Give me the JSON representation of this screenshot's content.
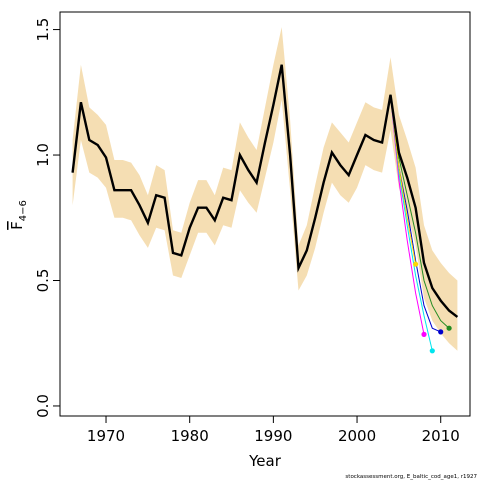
{
  "chart_data": {
    "type": "line",
    "xlabel": "Year",
    "ylabel": "F",
    "ylabel_sub": "4−6",
    "xlim": [
      1964.5,
      2013.5
    ],
    "ylim": [
      -0.04,
      1.57
    ],
    "x_ticks": [
      1970,
      1980,
      1990,
      2000,
      2010
    ],
    "x_tick_labels": [
      "1970",
      "1980",
      "1990",
      "2000",
      "2010"
    ],
    "y_ticks": [
      0.0,
      0.5,
      1.0,
      1.5
    ],
    "y_tick_labels": [
      "0.0",
      "0.5",
      "1.0",
      "1.5"
    ],
    "footnote": "stockassessment.org, E_baltic_cod_age1, r1927",
    "grid": false,
    "legend": "none",
    "colors": {
      "band": "#f5deb3",
      "main": "#000000",
      "retro": [
        "#ff00ff",
        "#00e5ee",
        "#0000cd",
        "#ffd700",
        "#228b22"
      ]
    },
    "years": [
      1966,
      1967,
      1968,
      1969,
      1970,
      1971,
      1972,
      1973,
      1974,
      1975,
      1976,
      1977,
      1978,
      1979,
      1980,
      1981,
      1982,
      1983,
      1984,
      1985,
      1986,
      1987,
      1988,
      1989,
      1990,
      1991,
      1992,
      1993,
      1994,
      1995,
      1996,
      1997,
      1998,
      1999,
      2000,
      2001,
      2002,
      2003,
      2004,
      2005,
      2006,
      2007,
      2008,
      2009,
      2010,
      2011,
      2012
    ],
    "estimate": [
      0.93,
      1.21,
      1.06,
      1.04,
      0.99,
      0.86,
      0.86,
      0.86,
      0.8,
      0.73,
      0.84,
      0.83,
      0.61,
      0.6,
      0.71,
      0.79,
      0.79,
      0.74,
      0.83,
      0.82,
      1.0,
      0.94,
      0.89,
      1.05,
      1.2,
      1.36,
      1.0,
      0.55,
      0.62,
      0.75,
      0.89,
      1.01,
      0.96,
      0.92,
      1.0,
      1.08,
      1.06,
      1.05,
      1.24,
      1.01,
      0.91,
      0.79,
      0.57,
      0.47,
      0.42,
      0.38,
      0.355
    ],
    "lower": [
      0.8,
      1.06,
      0.93,
      0.91,
      0.87,
      0.75,
      0.75,
      0.74,
      0.68,
      0.63,
      0.71,
      0.7,
      0.52,
      0.51,
      0.6,
      0.69,
      0.69,
      0.64,
      0.72,
      0.71,
      0.86,
      0.81,
      0.77,
      0.91,
      1.05,
      1.22,
      0.86,
      0.46,
      0.52,
      0.63,
      0.77,
      0.89,
      0.84,
      0.81,
      0.87,
      0.96,
      0.94,
      0.93,
      1.1,
      0.87,
      0.77,
      0.64,
      0.43,
      0.34,
      0.29,
      0.25,
      0.22
    ],
    "upper": [
      1.06,
      1.36,
      1.19,
      1.16,
      1.12,
      0.98,
      0.98,
      0.97,
      0.92,
      0.84,
      0.96,
      0.94,
      0.7,
      0.69,
      0.81,
      0.9,
      0.9,
      0.84,
      0.95,
      0.94,
      1.13,
      1.07,
      1.02,
      1.19,
      1.36,
      1.51,
      1.14,
      0.64,
      0.72,
      0.88,
      1.03,
      1.13,
      1.09,
      1.05,
      1.13,
      1.21,
      1.19,
      1.18,
      1.39,
      1.16,
      1.06,
      0.95,
      0.72,
      0.62,
      0.57,
      0.53,
      0.5
    ],
    "retro_peels": [
      {
        "x": [
          2004,
          2005,
          2006,
          2007,
          2008
        ],
        "y": [
          1.24,
          0.9,
          0.66,
          0.45,
          0.285
        ]
      },
      {
        "x": [
          2004,
          2005,
          2006,
          2007,
          2008,
          2009
        ],
        "y": [
          1.24,
          0.93,
          0.72,
          0.52,
          0.36,
          0.22
        ]
      },
      {
        "x": [
          2004,
          2005,
          2006,
          2007,
          2008,
          2009,
          2010
        ],
        "y": [
          1.24,
          0.95,
          0.78,
          0.58,
          0.4,
          0.31,
          0.295
        ]
      },
      {
        "x": [
          2004,
          2005,
          2006,
          2007
        ],
        "y": [
          1.24,
          0.95,
          0.75,
          0.565
        ]
      },
      {
        "x": [
          2004,
          2005,
          2006,
          2007,
          2008,
          2009,
          2010,
          2011
        ],
        "y": [
          1.24,
          0.99,
          0.84,
          0.69,
          0.5,
          0.4,
          0.34,
          0.31
        ]
      }
    ]
  }
}
